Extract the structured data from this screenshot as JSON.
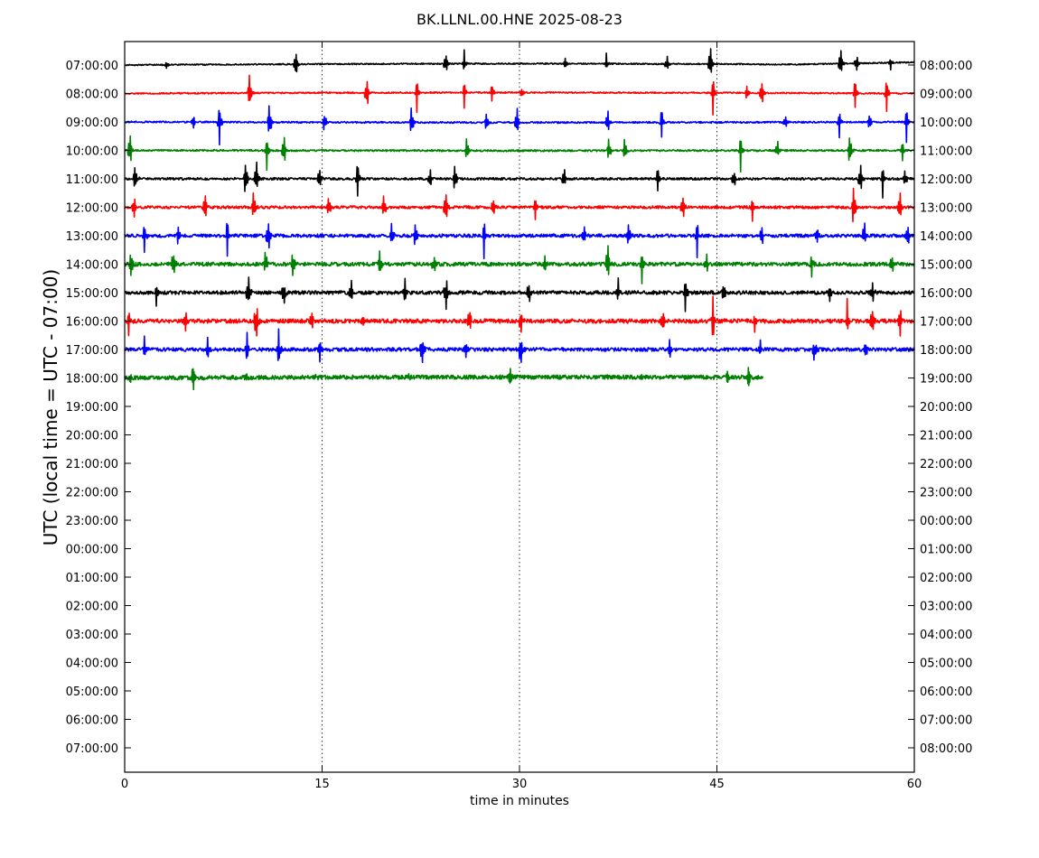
{
  "chart_data": {
    "type": "line",
    "title": "BK.LLNL.00.HNE 2025-08-23",
    "xlabel": "time in minutes",
    "ylabel": "UTC (local time = UTC - 07:00)",
    "xlim": [
      0,
      60
    ],
    "x_ticks": [
      "0",
      "15",
      "30",
      "45",
      "60"
    ],
    "x_tick_values": [
      0,
      15,
      30,
      45,
      60
    ],
    "vertical_gridlines_dotted_at": [
      15,
      30,
      45
    ],
    "left_tick_labels": [
      "07:00:00",
      "08:00:00",
      "09:00:00",
      "10:00:00",
      "11:00:00",
      "12:00:00",
      "13:00:00",
      "14:00:00",
      "15:00:00",
      "16:00:00",
      "17:00:00",
      "18:00:00",
      "19:00:00",
      "20:00:00",
      "21:00:00",
      "22:00:00",
      "23:00:00",
      "00:00:00",
      "01:00:00",
      "02:00:00",
      "03:00:00",
      "04:00:00",
      "05:00:00",
      "06:00:00",
      "07:00:00"
    ],
    "right_tick_labels": [
      "08:00:00",
      "09:00:00",
      "10:00:00",
      "11:00:00",
      "12:00:00",
      "13:00:00",
      "14:00:00",
      "15:00:00",
      "16:00:00",
      "17:00:00",
      "18:00:00",
      "19:00:00",
      "20:00:00",
      "21:00:00",
      "22:00:00",
      "23:00:00",
      "00:00:00",
      "01:00:00",
      "02:00:00",
      "03:00:00",
      "04:00:00",
      "05:00:00",
      "06:00:00",
      "07:00:00",
      "08:00:00"
    ],
    "trace_color_cycle": [
      "#000000",
      "#ff0000",
      "#0000ff",
      "#008000"
    ],
    "traces": [
      {
        "row": 0,
        "color": "#000000",
        "end_minute": 60,
        "noise": 0.7,
        "drift": [
          0,
          -1.5,
          3
        ],
        "spikes": [
          [
            3.2,
            -9
          ],
          [
            13,
            28
          ],
          [
            24.4,
            20
          ],
          [
            25.8,
            -15
          ],
          [
            33.5,
            10
          ],
          [
            36.6,
            -12
          ],
          [
            41.2,
            14
          ],
          [
            44.5,
            30
          ],
          [
            54.4,
            30
          ],
          [
            55.6,
            -18
          ],
          [
            58.2,
            8
          ]
        ]
      },
      {
        "row": 1,
        "color": "#ff0000",
        "end_minute": 60,
        "noise": 0.8,
        "drift": [
          0,
          -1,
          0
        ],
        "spikes": [
          [
            9.5,
            35
          ],
          [
            18.4,
            30
          ],
          [
            22.2,
            22
          ],
          [
            25.8,
            18
          ],
          [
            27.9,
            14
          ],
          [
            30.2,
            11
          ],
          [
            44.7,
            28
          ],
          [
            47.3,
            15
          ],
          [
            48.4,
            25
          ],
          [
            55.5,
            25
          ],
          [
            57.9,
            30
          ]
        ]
      },
      {
        "row": 2,
        "color": "#0000ff",
        "end_minute": 60,
        "noise": 0.9,
        "drift": [
          0,
          0.6,
          0
        ],
        "spikes": [
          [
            5.2,
            -14
          ],
          [
            7.2,
            35
          ],
          [
            11.0,
            32
          ],
          [
            15.2,
            18
          ],
          [
            21.8,
            28
          ],
          [
            27.5,
            20
          ],
          [
            29.8,
            26
          ],
          [
            36.7,
            22
          ],
          [
            40.8,
            26
          ],
          [
            50.2,
            14
          ],
          [
            54.3,
            20
          ],
          [
            56.6,
            18
          ],
          [
            59.4,
            24
          ]
        ]
      },
      {
        "row": 3,
        "color": "#008000",
        "end_minute": 60,
        "noise": 1.0,
        "drift": [
          0,
          0.3,
          0
        ],
        "spikes": [
          [
            0.4,
            32
          ],
          [
            10.8,
            25
          ],
          [
            12.1,
            28
          ],
          [
            26.0,
            22
          ],
          [
            36.8,
            26
          ],
          [
            38.0,
            20
          ],
          [
            46.8,
            24
          ],
          [
            49.6,
            16
          ],
          [
            55.1,
            28
          ],
          [
            59.1,
            18
          ]
        ]
      },
      {
        "row": 4,
        "color": "#000000",
        "end_minute": 60,
        "noise": 1.3,
        "drift": [
          0,
          0,
          0
        ],
        "spikes": [
          [
            0.8,
            25
          ],
          [
            9.2,
            35
          ],
          [
            10.0,
            30
          ],
          [
            14.8,
            22
          ],
          [
            17.7,
            28
          ],
          [
            23.2,
            20
          ],
          [
            25.1,
            24
          ],
          [
            33.4,
            18
          ],
          [
            40.5,
            22
          ],
          [
            46.3,
            16
          ],
          [
            55.9,
            30
          ],
          [
            57.6,
            22
          ],
          [
            59.3,
            14
          ]
        ]
      },
      {
        "row": 5,
        "color": "#ff0000",
        "end_minute": 60,
        "noise": 1.5,
        "drift": [
          0,
          0,
          0
        ],
        "spikes": [
          [
            0.7,
            -22
          ],
          [
            6.1,
            28
          ],
          [
            9.8,
            28
          ],
          [
            15.5,
            20
          ],
          [
            19.7,
            24
          ],
          [
            24.4,
            35
          ],
          [
            28.0,
            20
          ],
          [
            31.2,
            22
          ],
          [
            42.4,
            25
          ],
          [
            47.7,
            20
          ],
          [
            55.4,
            38
          ],
          [
            58.9,
            28
          ]
        ]
      },
      {
        "row": 6,
        "color": "#0000ff",
        "end_minute": 60,
        "noise": 1.8,
        "drift": [
          0,
          0,
          0
        ],
        "spikes": [
          [
            1.5,
            22
          ],
          [
            4.1,
            20
          ],
          [
            7.8,
            28
          ],
          [
            10.9,
            34
          ],
          [
            20.3,
            26
          ],
          [
            22.1,
            24
          ],
          [
            27.3,
            28
          ],
          [
            34.9,
            22
          ],
          [
            38.3,
            20
          ],
          [
            43.5,
            26
          ],
          [
            48.4,
            18
          ],
          [
            52.6,
            -16
          ],
          [
            56.2,
            24
          ],
          [
            59.5,
            22
          ]
        ]
      },
      {
        "row": 7,
        "color": "#008000",
        "end_minute": 60,
        "noise": 2.1,
        "drift": [
          0,
          0,
          0
        ],
        "spikes": [
          [
            0.5,
            -28
          ],
          [
            3.7,
            22
          ],
          [
            10.7,
            30
          ],
          [
            12.8,
            -22
          ],
          [
            19.4,
            26
          ],
          [
            23.5,
            18
          ],
          [
            31.9,
            20
          ],
          [
            36.7,
            34
          ],
          [
            39.3,
            24
          ],
          [
            44.2,
            22
          ],
          [
            52.2,
            20
          ],
          [
            58.3,
            18
          ]
        ]
      },
      {
        "row": 8,
        "color": "#000000",
        "end_minute": 60,
        "noise": 2.0,
        "drift": [
          0,
          0,
          0
        ],
        "spikes": [
          [
            2.4,
            16
          ],
          [
            9.4,
            30
          ],
          [
            12.1,
            -22
          ],
          [
            17.2,
            20
          ],
          [
            21.3,
            -18
          ],
          [
            24.4,
            -36
          ],
          [
            30.7,
            22
          ],
          [
            37.5,
            -16
          ],
          [
            42.6,
            22
          ],
          [
            45.5,
            18
          ],
          [
            53.6,
            -16
          ],
          [
            56.8,
            20
          ]
        ]
      },
      {
        "row": 9,
        "color": "#ff0000",
        "end_minute": 60,
        "noise": 2.3,
        "drift": [
          0,
          0,
          0
        ],
        "spikes": [
          [
            0.3,
            20
          ],
          [
            4.6,
            -22
          ],
          [
            10.0,
            -40
          ],
          [
            14.2,
            22
          ],
          [
            18.1,
            -16
          ],
          [
            26.2,
            24
          ],
          [
            30.1,
            -18
          ],
          [
            40.9,
            22
          ],
          [
            44.7,
            -34
          ],
          [
            47.9,
            -18
          ],
          [
            54.9,
            -25
          ],
          [
            56.8,
            22
          ],
          [
            58.9,
            -28
          ]
        ]
      },
      {
        "row": 10,
        "color": "#0000ff",
        "end_minute": 60,
        "noise": 2.0,
        "drift": [
          0,
          0,
          0
        ],
        "spikes": [
          [
            1.5,
            -16
          ],
          [
            6.3,
            -18
          ],
          [
            9.3,
            -22
          ],
          [
            11.7,
            -26
          ],
          [
            14.8,
            -24
          ],
          [
            22.6,
            -26
          ],
          [
            25.9,
            -16
          ],
          [
            30.1,
            -34
          ],
          [
            41.4,
            -16
          ],
          [
            48.3,
            -12
          ],
          [
            52.4,
            -20
          ],
          [
            56.3,
            -18
          ]
        ]
      },
      {
        "row": 11,
        "color": "#008000",
        "end_minute": 48.5,
        "noise": 2.3,
        "drift": [
          0,
          -1,
          4
        ],
        "spikes": [
          [
            0.5,
            -30
          ],
          [
            5.2,
            -18
          ],
          [
            9.2,
            -20
          ],
          [
            14.6,
            -20
          ],
          [
            21.5,
            -14
          ],
          [
            29.3,
            -16
          ],
          [
            36.6,
            -22
          ],
          [
            39.3,
            -16
          ],
          [
            45.8,
            -10
          ],
          [
            47.4,
            -18
          ]
        ]
      }
    ]
  }
}
